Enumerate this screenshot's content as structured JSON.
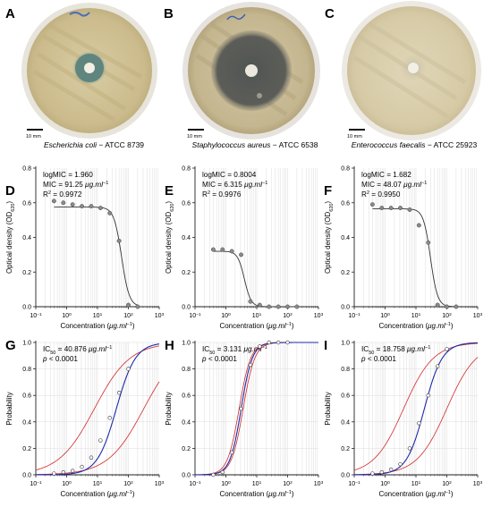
{
  "panels_top": [
    {
      "letter": "A",
      "organism": "Escherichia  coli",
      "strain": " − ATCC 8739",
      "scale_label": "10 mm"
    },
    {
      "letter": "B",
      "organism": "Staphylococcus aureus",
      "strain": " − ATCC 6538",
      "scale_label": "10 mm"
    },
    {
      "letter": "C",
      "organism": "Enterococcus faecalis",
      "strain": " − ATCC 25923",
      "scale_label": "10 mm"
    }
  ],
  "chart_data": [
    {
      "type": "scatter",
      "panel": "D",
      "ylabel": "Optical density (OD620)",
      "xlabel": "Concentration (μg.ml−1)",
      "xscale": "log",
      "xlim": [
        0.1,
        1000
      ],
      "ylim": [
        0,
        0.8
      ],
      "yticks": [
        0.0,
        0.2,
        0.4,
        0.6,
        0.8
      ],
      "xtick_labels": [
        "10−1",
        "100",
        "101",
        "102",
        "103"
      ],
      "annotations": [
        "logMIC = 1.960",
        "MIC = 91.25 μg.ml−1",
        "R2 = 0.9972"
      ],
      "x": [
        0.39,
        0.78,
        1.56,
        3.12,
        6.25,
        12.5,
        25,
        50,
        100,
        200
      ],
      "y": [
        0.61,
        0.6,
        0.59,
        0.58,
        0.58,
        0.57,
        0.54,
        0.38,
        0.01,
        0.0
      ],
      "fit": {
        "top": 0.575,
        "bottom": 0.0,
        "logEC50": 1.78,
        "hill": 3.5
      }
    },
    {
      "type": "scatter",
      "panel": "E",
      "ylabel": "Optical density (OD620)",
      "xlabel": "Concentration (μg.ml−1)",
      "xscale": "log",
      "xlim": [
        0.1,
        1000
      ],
      "ylim": [
        0,
        0.8
      ],
      "yticks": [
        0.0,
        0.2,
        0.4,
        0.6,
        0.8
      ],
      "xtick_labels": [
        "10−1",
        "100",
        "101",
        "102",
        "103"
      ],
      "annotations": [
        "logMIC = 0.8004",
        "MIC = 6.315 μg.ml−1",
        "R2 = 0.9976"
      ],
      "x": [
        0.39,
        0.78,
        1.56,
        3.12,
        6.25,
        12.5,
        25,
        50,
        100,
        200
      ],
      "y": [
        0.33,
        0.33,
        0.32,
        0.3,
        0.03,
        0.01,
        0.0,
        0.0,
        0.0,
        0.0
      ],
      "fit": {
        "top": 0.32,
        "bottom": 0.0,
        "logEC50": 0.6,
        "hill": 4.0
      }
    },
    {
      "type": "scatter",
      "panel": "F",
      "ylabel": "Optical density (OD620)",
      "xlabel": "Concentration (μg.ml−1)",
      "xscale": "log",
      "xlim": [
        0.1,
        1000
      ],
      "ylim": [
        0,
        0.8
      ],
      "yticks": [
        0.0,
        0.2,
        0.4,
        0.6,
        0.8
      ],
      "xtick_labels": [
        "10−1",
        "100",
        "101",
        "102",
        "103"
      ],
      "annotations": [
        "logMIC = 1.682",
        "MIC = 48.07 μg.ml−1",
        "R2 = 0.9950"
      ],
      "x": [
        0.39,
        0.78,
        1.56,
        3.12,
        6.25,
        12.5,
        25,
        50,
        100,
        200
      ],
      "y": [
        0.59,
        0.57,
        0.57,
        0.57,
        0.56,
        0.47,
        0.37,
        0.01,
        0.0,
        0.0
      ],
      "fit": {
        "top": 0.565,
        "bottom": 0.0,
        "logEC50": 1.47,
        "hill": 3.8
      }
    },
    {
      "type": "line",
      "panel": "G",
      "ylabel": "Probability",
      "xlabel": "Concentration (μg.ml−1)",
      "xscale": "log",
      "xlim": [
        0.1,
        1000
      ],
      "ylim": [
        0,
        1
      ],
      "yticks": [
        0.0,
        0.2,
        0.4,
        0.6,
        0.8,
        1.0
      ],
      "xtick_labels": [
        "10−1",
        "100",
        "101",
        "102",
        "103"
      ],
      "annotations": [
        "IC50 = 40.876 μg.ml−1",
        "p < 0.0001"
      ],
      "x": [
        0.39,
        0.78,
        1.56,
        3.12,
        6.25,
        12.5,
        25,
        50,
        100
      ],
      "y": [
        0.01,
        0.02,
        0.03,
        0.06,
        0.13,
        0.26,
        0.43,
        0.62,
        0.8
      ],
      "fit": {
        "logIC50": 1.611,
        "slope": 1.4
      },
      "ci_lower": {
        "logIC50": 2.5,
        "slope": 0.75
      },
      "ci_upper": {
        "logIC50": 0.9,
        "slope": 0.75
      }
    },
    {
      "type": "line",
      "panel": "H",
      "ylabel": "Probability",
      "xlabel": "Concentration (μg.ml−1)",
      "xscale": "log",
      "xlim": [
        0.1,
        1000
      ],
      "ylim": [
        0,
        1
      ],
      "yticks": [
        0.0,
        0.2,
        0.4,
        0.6,
        0.8,
        1.0
      ],
      "xtick_labels": [
        "10−1",
        "100",
        "101",
        "102",
        "103"
      ],
      "annotations": [
        "IC50 = 3.131 μg.ml−1",
        "p < 0.0001"
      ],
      "x": [
        0.39,
        0.78,
        1.56,
        3.12,
        6.25,
        12.5,
        25,
        50,
        100
      ],
      "y": [
        0.0,
        0.02,
        0.17,
        0.5,
        0.83,
        0.97,
        1.0,
        1.0,
        1.0
      ],
      "fit": {
        "logIC50": 0.496,
        "slope": 2.4
      },
      "ci_lower": {
        "logIC50": 0.56,
        "slope": 2.3
      },
      "ci_upper": {
        "logIC50": 0.43,
        "slope": 2.3
      }
    },
    {
      "type": "line",
      "panel": "I",
      "ylabel": "Probability",
      "xlabel": "Concentration (μg.ml−1)",
      "xscale": "log",
      "xlim": [
        0.1,
        1000
      ],
      "ylim": [
        0,
        1
      ],
      "yticks": [
        0.0,
        0.2,
        0.4,
        0.6,
        0.8,
        1.0
      ],
      "xtick_labels": [
        "10−1",
        "100",
        "101",
        "102",
        "103"
      ],
      "annotations": [
        "IC50 = 18.758 μg.ml−1",
        "p < 0.0001"
      ],
      "x": [
        0.39,
        0.78,
        1.56,
        3.12,
        6.25,
        12.5,
        25,
        50,
        100
      ],
      "y": [
        0.01,
        0.02,
        0.04,
        0.08,
        0.2,
        0.39,
        0.6,
        0.82,
        0.95
      ],
      "fit": {
        "logIC50": 1.273,
        "slope": 1.5
      },
      "ci_lower": {
        "logIC50": 2.0,
        "slope": 0.9
      },
      "ci_upper": {
        "logIC50": 0.6,
        "slope": 0.9
      }
    }
  ]
}
